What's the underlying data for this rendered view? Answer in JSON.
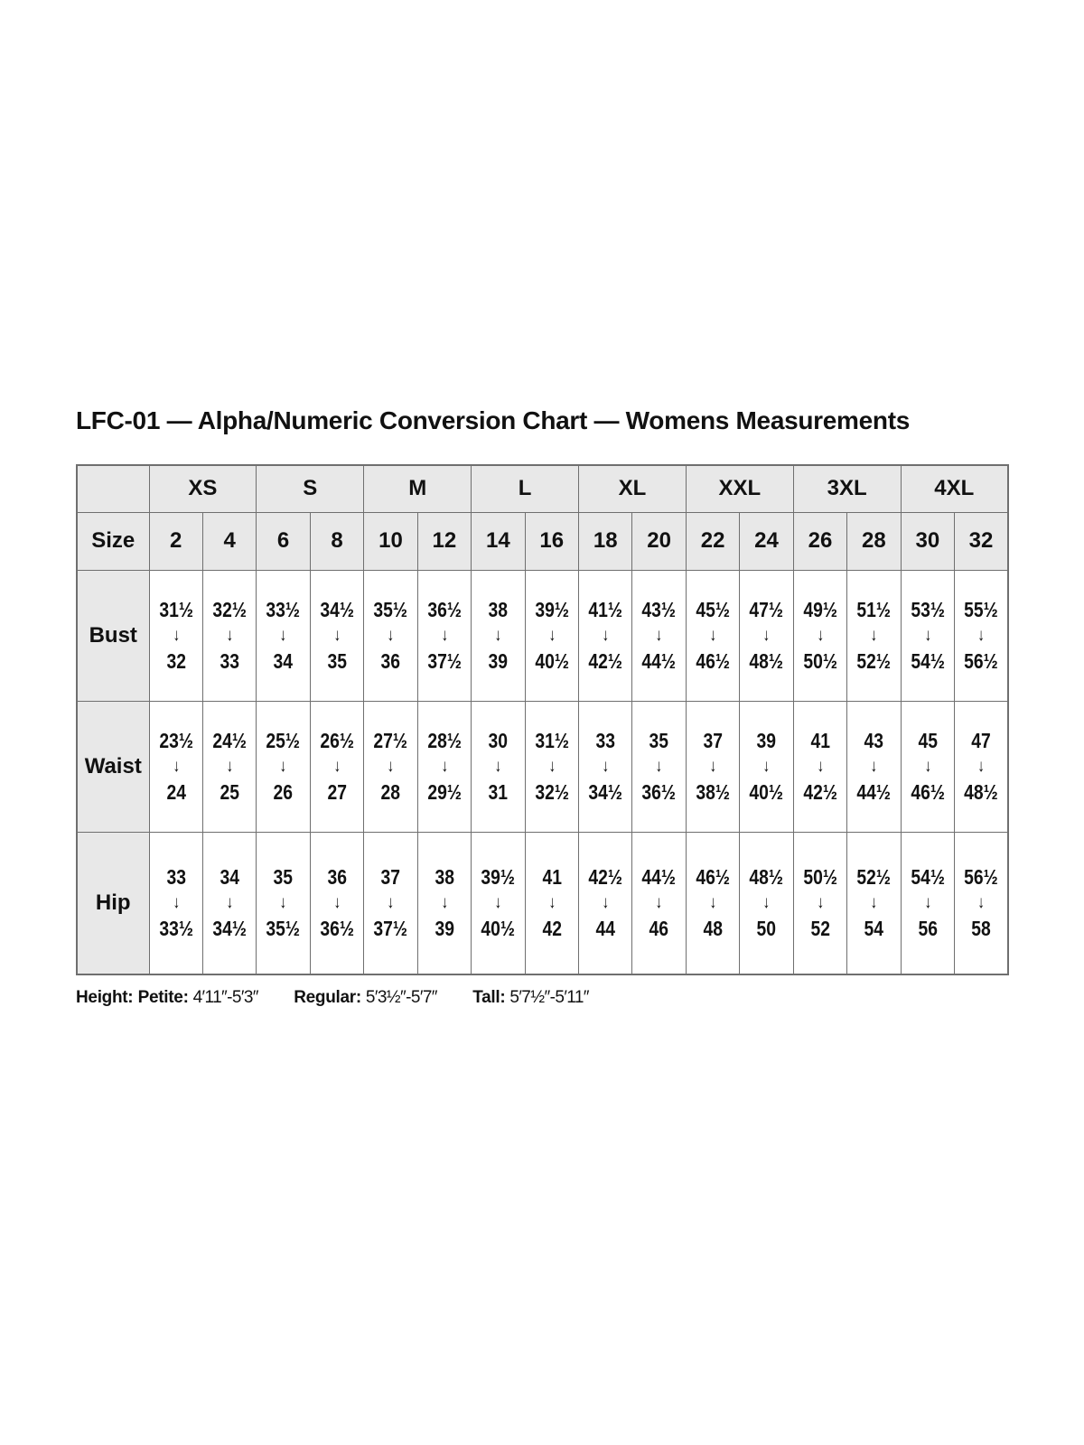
{
  "title": "LFC-01 — Alpha/Numeric Conversion Chart — Womens Measurements",
  "table": {
    "corner_label": "",
    "size_label": "Size",
    "arrow": "↓",
    "alpha_sizes": [
      "XS",
      "S",
      "M",
      "L",
      "XL",
      "XXL",
      "3XL",
      "4XL"
    ],
    "numeric_sizes": [
      "2",
      "4",
      "6",
      "8",
      "10",
      "12",
      "14",
      "16",
      "18",
      "20",
      "22",
      "24",
      "26",
      "28",
      "30",
      "32"
    ],
    "rows": [
      {
        "label": "Bust",
        "ranges": [
          {
            "from": "31½",
            "to": "32"
          },
          {
            "from": "32½",
            "to": "33"
          },
          {
            "from": "33½",
            "to": "34"
          },
          {
            "from": "34½",
            "to": "35"
          },
          {
            "from": "35½",
            "to": "36"
          },
          {
            "from": "36½",
            "to": "37½"
          },
          {
            "from": "38",
            "to": "39"
          },
          {
            "from": "39½",
            "to": "40½"
          },
          {
            "from": "41½",
            "to": "42½"
          },
          {
            "from": "43½",
            "to": "44½"
          },
          {
            "from": "45½",
            "to": "46½"
          },
          {
            "from": "47½",
            "to": "48½"
          },
          {
            "from": "49½",
            "to": "50½"
          },
          {
            "from": "51½",
            "to": "52½"
          },
          {
            "from": "53½",
            "to": "54½"
          },
          {
            "from": "55½",
            "to": "56½"
          }
        ]
      },
      {
        "label": "Waist",
        "ranges": [
          {
            "from": "23½",
            "to": "24"
          },
          {
            "from": "24½",
            "to": "25"
          },
          {
            "from": "25½",
            "to": "26"
          },
          {
            "from": "26½",
            "to": "27"
          },
          {
            "from": "27½",
            "to": "28"
          },
          {
            "from": "28½",
            "to": "29½"
          },
          {
            "from": "30",
            "to": "31"
          },
          {
            "from": "31½",
            "to": "32½"
          },
          {
            "from": "33",
            "to": "34½"
          },
          {
            "from": "35",
            "to": "36½"
          },
          {
            "from": "37",
            "to": "38½"
          },
          {
            "from": "39",
            "to": "40½"
          },
          {
            "from": "41",
            "to": "42½"
          },
          {
            "from": "43",
            "to": "44½"
          },
          {
            "from": "45",
            "to": "46½"
          },
          {
            "from": "47",
            "to": "48½"
          }
        ]
      },
      {
        "label": "Hip",
        "ranges": [
          {
            "from": "33",
            "to": "33½"
          },
          {
            "from": "34",
            "to": "34½"
          },
          {
            "from": "35",
            "to": "35½"
          },
          {
            "from": "36",
            "to": "36½"
          },
          {
            "from": "37",
            "to": "37½"
          },
          {
            "from": "38",
            "to": "39"
          },
          {
            "from": "39½",
            "to": "40½"
          },
          {
            "from": "41",
            "to": "42"
          },
          {
            "from": "42½",
            "to": "44"
          },
          {
            "from": "44½",
            "to": "46"
          },
          {
            "from": "46½",
            "to": "48"
          },
          {
            "from": "48½",
            "to": "50"
          },
          {
            "from": "50½",
            "to": "52"
          },
          {
            "from": "52½",
            "to": "54"
          },
          {
            "from": "54½",
            "to": "56"
          },
          {
            "from": "56½",
            "to": "58"
          }
        ]
      }
    ]
  },
  "footer": {
    "height_label": "Height:",
    "segments": [
      {
        "label": "Petite:",
        "value": "4′11″-5′3″"
      },
      {
        "label": "Regular:",
        "value": "5′3½″-5′7″"
      },
      {
        "label": "Tall:",
        "value": "5′7½″-5′11″"
      }
    ]
  },
  "colors": {
    "header_bg": "#e8e8e8",
    "border": "#6f6f6f",
    "text": "#111111",
    "page_bg": "#ffffff"
  }
}
